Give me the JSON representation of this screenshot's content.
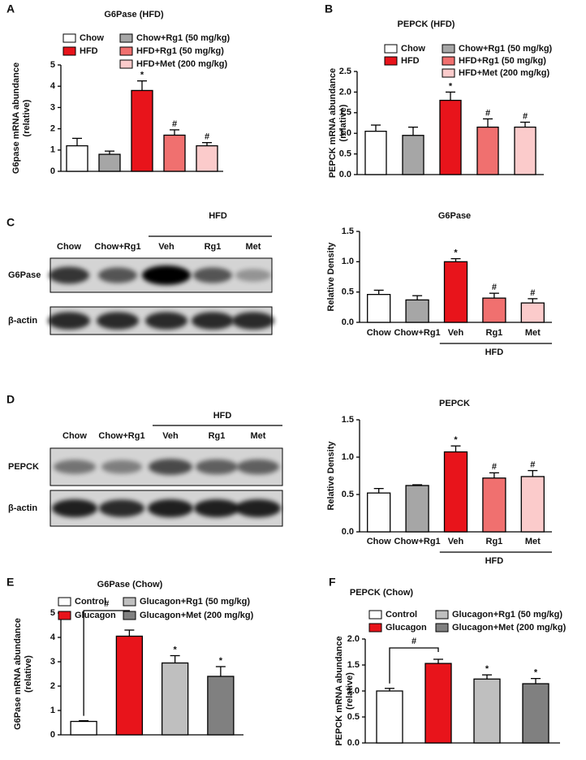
{
  "panels": [
    "A",
    "B",
    "C",
    "D",
    "E",
    "F"
  ],
  "blots": [
    {
      "lanes": [
        "Chow",
        "Chow+Rg1",
        "Veh",
        "Rg1",
        "Met"
      ],
      "group": "HFD",
      "rows": [
        "G6Pase",
        "β-actin"
      ]
    },
    {
      "lanes": [
        "Chow",
        "Chow+Rg1",
        "Veh",
        "Rg1",
        "Met"
      ],
      "group": "HFD",
      "rows": [
        "PEPCK",
        "β-actin"
      ]
    }
  ],
  "chart_data": [
    {
      "type": "bar",
      "title": "G6Pase (HFD)",
      "ylabel": [
        "G6pase mRNA abundance",
        "(relative)"
      ],
      "categories": [
        null,
        null,
        null,
        null,
        null
      ],
      "values": [
        1.2,
        0.8,
        3.8,
        1.7,
        1.2
      ],
      "errors": [
        0.35,
        0.15,
        0.45,
        0.25,
        0.15
      ],
      "colors": [
        "#ffffff",
        "#a6a6a6",
        "#e8141b",
        "#f0706f",
        "#fbcbcb"
      ],
      "annotations": [
        null,
        null,
        "*",
        "#",
        "#"
      ],
      "legend": [
        {
          "name": "Chow",
          "color": "#ffffff"
        },
        {
          "name": "HFD",
          "color": "#e8141b"
        },
        {
          "name": "Chow+Rg1 (50 mg/kg)",
          "color": "#a6a6a6"
        },
        {
          "name": "HFD+Rg1 (50 mg/kg)",
          "color": "#f0706f"
        },
        {
          "name": "HFD+Met (200 mg/kg)",
          "color": "#fbcbcb"
        }
      ],
      "ylim": [
        0,
        5
      ],
      "yticks": [
        0,
        1,
        2,
        3,
        4,
        5
      ]
    },
    {
      "type": "bar",
      "title": "PEPCK (HFD)",
      "ylabel": [
        "PEPCK mRNA abundance",
        "(relative)"
      ],
      "categories": [
        null,
        null,
        null,
        null,
        null
      ],
      "values": [
        1.05,
        0.95,
        1.8,
        1.15,
        1.15
      ],
      "errors": [
        0.15,
        0.2,
        0.2,
        0.2,
        0.12
      ],
      "colors": [
        "#ffffff",
        "#a6a6a6",
        "#e8141b",
        "#f0706f",
        "#fbcbcb"
      ],
      "annotations": [
        null,
        null,
        "*",
        "#",
        "#"
      ],
      "legend": [
        {
          "name": "Chow",
          "color": "#ffffff"
        },
        {
          "name": "HFD",
          "color": "#e8141b"
        },
        {
          "name": "Chow+Rg1 (50 mg/kg)",
          "color": "#a6a6a6"
        },
        {
          "name": "HFD+Rg1 (50 mg/kg)",
          "color": "#f0706f"
        },
        {
          "name": "HFD+Met (200 mg/kg)",
          "color": "#fbcbcb"
        }
      ],
      "ylim": [
        0,
        2.5
      ],
      "yticks": [
        {
          "value": 0,
          "label": "0.0"
        },
        0.5,
        {
          "value": 1,
          "label": "1.0"
        },
        1.5,
        {
          "value": 2,
          "label": "2.0"
        },
        2.5
      ]
    },
    {
      "type": "bar",
      "title": "G6Pase",
      "ylabel": [
        "Relative Density"
      ],
      "categories": [
        "Chow",
        "Chow+Rg1",
        "Veh",
        "Rg1",
        "Met"
      ],
      "group_label": "HFD",
      "values": [
        0.46,
        0.37,
        1.0,
        0.4,
        0.32
      ],
      "errors": [
        0.07,
        0.07,
        0.05,
        0.08,
        0.07
      ],
      "colors": [
        "#ffffff",
        "#a6a6a6",
        "#e8141b",
        "#f0706f",
        "#fbcbcb"
      ],
      "annotations": [
        null,
        null,
        "*",
        "#",
        "#"
      ],
      "ylim": [
        0,
        1.5
      ],
      "yticks": [
        {
          "value": 0,
          "label": "0.0"
        },
        0.5,
        {
          "value": 1,
          "label": "1.0"
        },
        1.5
      ]
    },
    {
      "type": "bar",
      "title": "PEPCK",
      "ylabel": [
        "Relative Density"
      ],
      "categories": [
        "Chow",
        "Chow+Rg1",
        "Veh",
        "Rg1",
        "Met"
      ],
      "group_label": "HFD",
      "values": [
        0.52,
        0.62,
        1.07,
        0.72,
        0.74
      ],
      "errors": [
        0.06,
        0.01,
        0.08,
        0.07,
        0.08
      ],
      "colors": [
        "#ffffff",
        "#a6a6a6",
        "#e8141b",
        "#f0706f",
        "#fbcbcb"
      ],
      "annotations": [
        null,
        null,
        "*",
        "#",
        "#"
      ],
      "ylim": [
        0,
        1.5
      ],
      "yticks": [
        {
          "value": 0,
          "label": "0.0"
        },
        0.5,
        {
          "value": 1,
          "label": "1.0"
        },
        1.5
      ]
    },
    {
      "type": "bar",
      "title": "G6Pase (Chow)",
      "ylabel": [
        "G6Pase mRNA abundance",
        "(relative)"
      ],
      "categories": [
        null,
        null,
        null,
        null
      ],
      "values": [
        0.55,
        4.05,
        2.95,
        2.4
      ],
      "errors": [
        0.03,
        0.25,
        0.3,
        0.4
      ],
      "colors": [
        "#ffffff",
        "#e8141b",
        "#bfbfbf",
        "#808080"
      ],
      "annotations": [
        null,
        null,
        "*",
        "*"
      ],
      "bracket_label": "#",
      "legend": [
        {
          "name": "Control",
          "color": "#ffffff"
        },
        {
          "name": "Glucagon",
          "color": "#e8141b"
        },
        {
          "name": "Glucagon+Rg1 (50 mg/kg)",
          "color": "#bfbfbf"
        },
        {
          "name": "Glucagon+Met (200 mg/kg)",
          "color": "#808080"
        }
      ],
      "ylim": [
        0,
        5
      ],
      "yticks": [
        0,
        1,
        2,
        3,
        4,
        5
      ]
    },
    {
      "type": "bar",
      "title": "PEPCK (Chow)",
      "ylabel": [
        "PEPCK mRNA abundance",
        "(relative)"
      ],
      "categories": [
        null,
        null,
        null,
        null
      ],
      "values": [
        1.0,
        1.53,
        1.23,
        1.14
      ],
      "errors": [
        0.05,
        0.08,
        0.08,
        0.1
      ],
      "colors": [
        "#ffffff",
        "#e8141b",
        "#bfbfbf",
        "#808080"
      ],
      "annotations": [
        null,
        null,
        "*",
        "*"
      ],
      "bracket_label": "#",
      "legend": [
        {
          "name": "Control",
          "color": "#ffffff"
        },
        {
          "name": "Glucagon",
          "color": "#e8141b"
        },
        {
          "name": "Glucagon+Rg1 (50 mg/kg)",
          "color": "#bfbfbf"
        },
        {
          "name": "Glucagon+Met (200 mg/kg)",
          "color": "#808080"
        }
      ],
      "ylim": [
        0,
        2
      ],
      "yticks": [
        {
          "value": 0,
          "label": "0.0"
        },
        0.5,
        {
          "value": 1,
          "label": "1.0"
        },
        1.5,
        {
          "value": 2,
          "label": "2.0"
        }
      ]
    }
  ]
}
